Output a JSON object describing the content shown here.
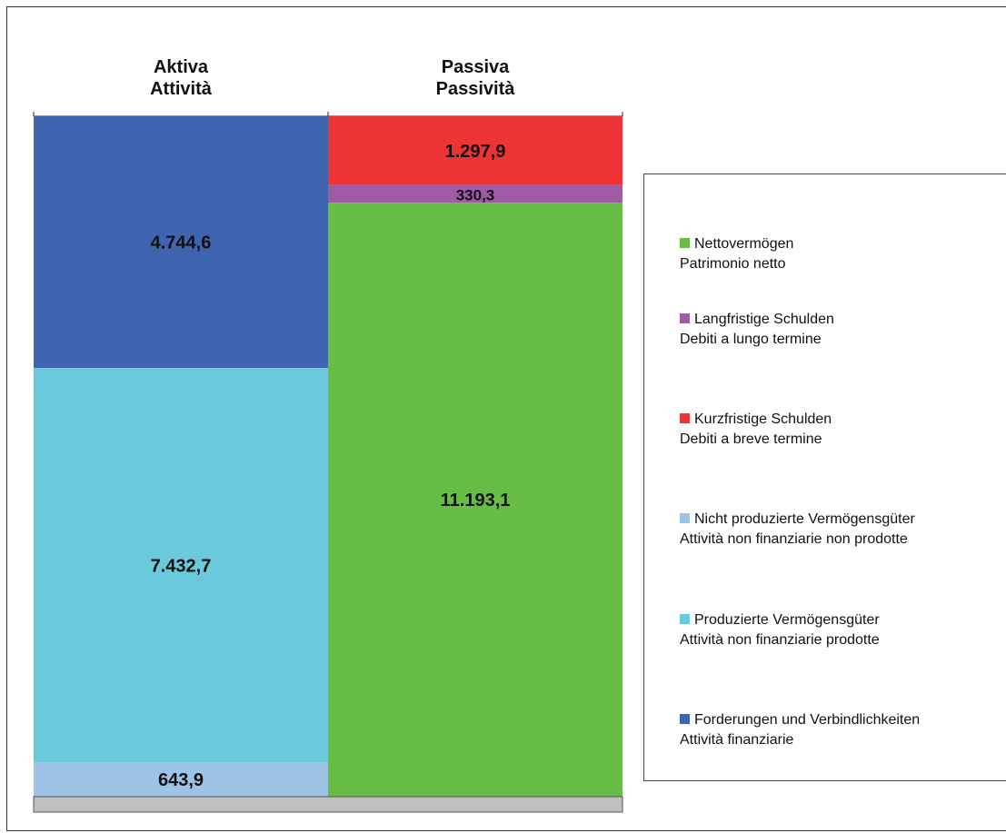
{
  "chart_data": {
    "type": "bar",
    "stacked": true,
    "categories": [
      "Aktiva\nAttività",
      "Passiva\nPassività"
    ],
    "headers": [
      {
        "line1": "Aktiva",
        "line2": "Attività"
      },
      {
        "line1": "Passiva",
        "line2": "Passività"
      }
    ],
    "series": [
      {
        "name": "Forderungen und Verbindlichkeiten / Attività finanziarie",
        "key": "fin",
        "color": "#3F65B0",
        "values": [
          4744.6,
          null
        ],
        "labels": [
          "4.744,6",
          null
        ]
      },
      {
        "name": "Produzierte Vermögensgüter / Attività non finanziarie prodotte",
        "key": "prod",
        "color": "#6ACADC",
        "values": [
          7432.7,
          null
        ],
        "labels": [
          "7.432,7",
          null
        ]
      },
      {
        "name": "Nicht produzierte Vermögensgüter / Attività non finanziarie non prodotte",
        "key": "nonprod",
        "color": "#9DC3E6",
        "values": [
          643.9,
          null
        ],
        "labels": [
          "643,9",
          null
        ]
      },
      {
        "name": "Kurzfristige Schulden / Debiti a breve termine",
        "key": "short",
        "color": "#EE3335",
        "values": [
          null,
          1297.9
        ],
        "labels": [
          null,
          "1.297,9"
        ]
      },
      {
        "name": "Langfristige Schulden / Debiti a lungo termine",
        "key": "long",
        "color": "#A05BA5",
        "values": [
          null,
          330.3
        ],
        "labels": [
          null,
          "330,3"
        ]
      },
      {
        "name": "Nettovermögen / Patrimonio netto",
        "key": "net",
        "color": "#67BD45",
        "values": [
          null,
          11193.1
        ],
        "labels": [
          null,
          "11.193,1"
        ]
      }
    ],
    "stack_order": [
      [
        "fin",
        "prod",
        "nonprod"
      ],
      [
        "short",
        "long",
        "net"
      ]
    ],
    "legend": [
      {
        "key": "net",
        "line1": "Nettovermögen",
        "line2": "Patrimonio netto",
        "color": "#67BD45"
      },
      {
        "key": "long",
        "line1": "Langfristige Schulden",
        "line2": "Debiti a lungo termine",
        "color": "#A05BA5"
      },
      {
        "key": "short",
        "line1": "Kurzfristige Schulden",
        "line2": "Debiti a breve termine",
        "color": "#EE3335"
      },
      {
        "key": "nonprod",
        "line1": "Nicht produzierte Vermögensgüter",
        "line2": "Attività non finanziarie non prodotte",
        "color": "#9DC3E6"
      },
      {
        "key": "prod",
        "line1": "Produzierte Vermögensgüter",
        "line2": "Attività non finanziarie prodotte",
        "color": "#6ACADC"
      },
      {
        "key": "fin",
        "line1": "Forderungen und Verbindlichkeiten",
        "line2": "Attività finanziarie",
        "color": "#3F65B0"
      }
    ],
    "legend_position": "right",
    "grid": false,
    "floor_color": "#BFBFBF"
  }
}
